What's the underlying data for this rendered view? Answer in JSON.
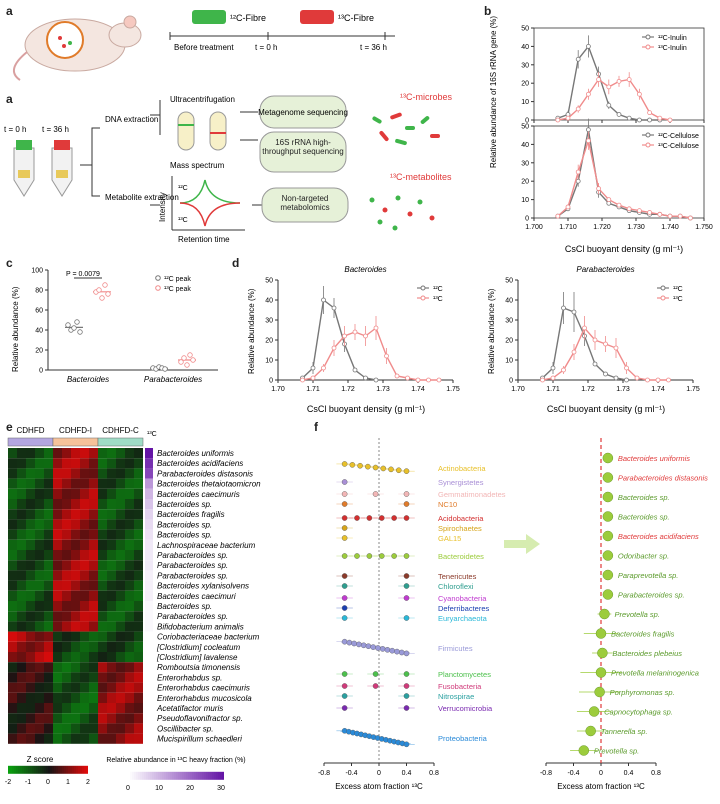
{
  "panel_letters": [
    "a",
    "b",
    "c",
    "d",
    "e",
    "f"
  ],
  "panel_a": {
    "fibre_12": "¹²C-Fibre",
    "fibre_13": "¹³C-Fibre",
    "timeline": [
      "Before treatment",
      "t = 0 h",
      "t = 36 h"
    ],
    "tube_labels": [
      "t = 0 h",
      "t = 36 h"
    ],
    "dna_extraction": "DNA extraction",
    "metabolite_extraction": "Metabolite extraction",
    "ultracentrifugation": "Ultracentrifugation",
    "mass_spectrum": "Mass spectrum",
    "box_metagenome": "Metagenome sequencing",
    "box_16s": "16S rRNA high-throughput sequencing",
    "box_metabolomics": "Non-targeted metabolomics",
    "microbes_label": "¹³C-microbes",
    "metabolites_label": "¹³C-metabolites",
    "intensity": "Intensity",
    "retention_time": "Retention time",
    "peak12": "¹²C",
    "peak13": "¹³C"
  },
  "colors": {
    "c12": "#777777",
    "c13": "#f08b8b",
    "green": "#3fb54a",
    "red": "#e03a3a"
  },
  "panel_b": {
    "ylabel": "Relative abundance of 16S rRNA gene (%)",
    "xlabel": "CsCl buoyant density (g ml⁻¹)",
    "xticks": [
      "1.700",
      "1.710",
      "1.720",
      "1.730",
      "1.740",
      "1.750"
    ],
    "top_yticks": [
      "0",
      "10",
      "20",
      "30",
      "40",
      "50"
    ],
    "bottom_yticks": [
      "0",
      "10",
      "20",
      "30",
      "40",
      "50"
    ],
    "legend_top": [
      "¹²C-Inulin",
      "¹³C-Inulin"
    ],
    "legend_bottom": [
      "¹²C-Cellulose",
      "¹³C-Cellulose"
    ]
  },
  "panel_c": {
    "ylabel": "Relative abundance (%)",
    "yticks": [
      "0",
      "20",
      "40",
      "60",
      "80",
      "100"
    ],
    "categories": [
      "Bacteroides",
      "Parabacteroides"
    ],
    "pvalue": "P = 0.0079",
    "legend": [
      "¹²C peak",
      "¹³C peak"
    ]
  },
  "panel_d": {
    "titles": [
      "Bacteroides",
      "Parabacteroides"
    ],
    "ylabel": "Relative abundance (%)",
    "xlabel": "CsCl buoyant density (g ml⁻¹)",
    "xticks": [
      "1.70",
      "1.71",
      "1.72",
      "1.73",
      "1.74",
      "1.75"
    ],
    "yticks": [
      "0",
      "10",
      "20",
      "30",
      "40",
      "50"
    ],
    "legend": [
      "¹²C",
      "¹³C"
    ]
  },
  "panel_e": {
    "groups": [
      "CDHFD",
      "CDHFD-I",
      "CDHFD-C"
    ],
    "corner": "¹³C",
    "rows": [
      "Bacteroides uniformis",
      "Bacteroides acidifaciens",
      "Parabacteroides distasonis",
      "Bacteroides thetaiotaomicron",
      "Bacteroides caecimuris",
      "Bacteroides sp.",
      "Bacteroides fragilis",
      "Bacteroides sp.",
      "Bacteroides sp.",
      "Lachnospiraceae bacterium",
      "Parabacteroides sp.",
      "Parabacteroides sp.",
      "Parabacteroides sp.",
      "Bacteroides xylanisolvens",
      "Bacteroides caecimuri",
      "Bacteroides sp.",
      "Parabacteroides sp.",
      "Bifidobacterium animalis",
      "Coriobacteriaceae bacterium",
      "[Clostridium] cocleatum",
      "[Clostridium] lavalense",
      "Romboutsia timonensis",
      "Enterorhabdus sp.",
      "Enterorhabdus caecimuris",
      "Enterorhabdus mucosicola",
      "Acetatifactor muris",
      "Pseudoflavonifractor sp.",
      "Oscillibacter sp.",
      "Mucispirillum schaedleri"
    ],
    "zscore_title": "Z score",
    "zscore_ticks": [
      "-2",
      "-1",
      "0",
      "1",
      "2"
    ],
    "heavy_title": "Relative abundance in ¹³C heavy fraction (%)",
    "heavy_ticks": [
      "0",
      "10",
      "20",
      "30"
    ]
  },
  "panel_f": {
    "phyla": [
      {
        "name": "Actinobacteria",
        "color": "#e8c02a"
      },
      {
        "name": "Synergistetes",
        "color": "#a98fd6"
      },
      {
        "name": "Gemmatimonadetes",
        "color": "#f2b6b6"
      },
      {
        "name": "NC10",
        "color": "#e07b2a"
      },
      {
        "name": "Acidobacteria",
        "color": "#d32f2f"
      },
      {
        "name": "Spirochaetes",
        "color": "#d6a419"
      },
      {
        "name": "GAL15",
        "color": "#e8c02a"
      },
      {
        "name": "Bacteroidetes",
        "color": "#9ccc3c"
      },
      {
        "name": "Tenericutes",
        "color": "#8b3a2a"
      },
      {
        "name": "Chloroflexi",
        "color": "#2e9e8f"
      },
      {
        "name": "Cyanobacteria",
        "color": "#c03ad0"
      },
      {
        "name": "Deferribacteres",
        "color": "#1a3fb0"
      },
      {
        "name": "Euryarchaeota",
        "color": "#2ab8d8"
      },
      {
        "name": "Firmicutes",
        "color": "#9a9ad8"
      },
      {
        "name": "Planctomycetes",
        "color": "#4cc04c"
      },
      {
        "name": "Fusobacteria",
        "color": "#d03a7a"
      },
      {
        "name": "Nitrospirae",
        "color": "#2aa0a0"
      },
      {
        "name": "Verrucomicrobia",
        "color": "#7a2ab0"
      },
      {
        "name": "Proteobacteria",
        "color": "#2a8ad8"
      }
    ],
    "species": [
      {
        "name": "Bacteroides uniformis",
        "color": "#e03a3a"
      },
      {
        "name": "Parabacteroides distasonis",
        "color": "#e03a3a"
      },
      {
        "name": "Bacteroides sp.",
        "color": "#5a9a2a"
      },
      {
        "name": "Bacteroides sp.",
        "color": "#5a9a2a"
      },
      {
        "name": "Bacteroides acidifaciens",
        "color": "#e03a3a"
      },
      {
        "name": "Odoribacter sp.",
        "color": "#5a9a2a"
      },
      {
        "name": "Paraprevotella sp.",
        "color": "#5a9a2a"
      },
      {
        "name": "Parabacteroides sp.",
        "color": "#5a9a2a"
      },
      {
        "name": "Prevotella sp.",
        "color": "#5a9a2a"
      },
      {
        "name": "Bacteroides fragilis",
        "color": "#5a9a2a"
      },
      {
        "name": "Bacteroides plebeius",
        "color": "#5a9a2a"
      },
      {
        "name": "Prevotella melaninogenica",
        "color": "#5a9a2a"
      },
      {
        "name": "Porphyromonas sp.",
        "color": "#5a9a2a"
      },
      {
        "name": "Capnocytophaga sp.",
        "color": "#5a9a2a"
      },
      {
        "name": "Tannerella sp.",
        "color": "#5a9a2a"
      },
      {
        "name": "Prevotella sp.",
        "color": "#5a9a2a"
      }
    ],
    "xlabel": "Excess atom fraction ¹³C",
    "xticks": [
      "-0.8",
      "-0.4",
      "0",
      "0.4",
      "0.8"
    ]
  }
}
